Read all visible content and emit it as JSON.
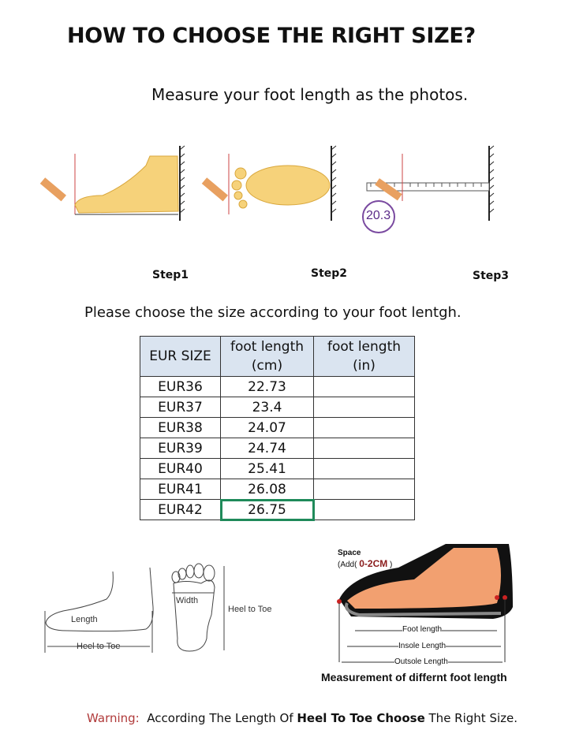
{
  "title": "HOW TO CHOOSE THE RIGHT SIZE?",
  "subtitle": "Measure your foot length as the photos.",
  "steps": [
    "Step1",
    "Step2",
    "Step3"
  ],
  "ruler_reading": "20.3",
  "choose_text": "Please choose the size according to your foot lentgh.",
  "table": {
    "headers": [
      "EUR SIZE",
      "foot length",
      "(cm)",
      "foot length",
      "(in)"
    ],
    "rows": [
      [
        "EUR36",
        "22.73",
        ""
      ],
      [
        "EUR37",
        "23.4",
        ""
      ],
      [
        "EUR38",
        "24.07",
        ""
      ],
      [
        "EUR39",
        "24.74",
        ""
      ],
      [
        "EUR40",
        "25.41",
        ""
      ],
      [
        "EUR41",
        "26.08",
        ""
      ],
      [
        "EUR42",
        "26.75",
        ""
      ]
    ],
    "selected_color": "#1f8a5a"
  },
  "diagram_left": {
    "length": "Length",
    "heel_to_toe": "Heel to Toe",
    "width": "Width",
    "heel_to_toe_2": "Heel to Toe"
  },
  "diagram_right": {
    "space": "Space",
    "add": "(Add(",
    "add_value": "0-2CM",
    "add_close": ")",
    "foot_length": "Foot length",
    "insole_length": "Insole Length",
    "outsole_length": "Outsole Length",
    "caption": "Measurement of differnt foot length"
  },
  "warning": {
    "label": "Warning:",
    "pre": "According The Length Of ",
    "bold": "Heel To Toe Choose",
    "post": " The Right Size."
  }
}
